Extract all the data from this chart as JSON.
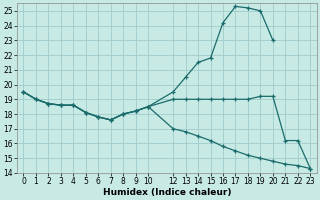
{
  "xlabel": "Humidex (Indice chaleur)",
  "xlim": [
    -0.5,
    23.5
  ],
  "ylim": [
    14,
    25.5
  ],
  "xticks": [
    0,
    1,
    2,
    3,
    4,
    5,
    6,
    7,
    8,
    9,
    10,
    12,
    13,
    14,
    15,
    16,
    17,
    18,
    19,
    20,
    21,
    22,
    23
  ],
  "yticks": [
    14,
    15,
    16,
    17,
    18,
    19,
    20,
    21,
    22,
    23,
    24,
    25
  ],
  "bg_color": "#c8eae5",
  "grid_color": "#a0cccc",
  "line_color": "#1a6b6b",
  "line1_x": [
    0,
    1,
    2,
    3,
    4,
    5,
    6,
    7,
    8,
    9,
    10,
    12,
    13,
    14,
    15,
    16,
    17,
    18,
    19,
    20,
    21,
    22,
    23
  ],
  "line1_y": [
    19.5,
    19.0,
    18.7,
    18.6,
    18.6,
    18.1,
    17.8,
    17.6,
    18.0,
    18.2,
    18.5,
    19.0,
    19.0,
    19.0,
    19.0,
    19.0,
    19.0,
    19.0,
    19.2,
    19.2,
    16.2,
    16.2,
    14.3
  ],
  "line2_x": [
    0,
    1,
    2,
    3,
    4,
    5,
    6,
    7,
    8,
    9,
    10,
    12,
    13,
    14,
    15,
    16,
    17,
    18,
    19,
    20
  ],
  "line2_y": [
    19.5,
    19.0,
    18.7,
    18.6,
    18.6,
    18.1,
    17.8,
    17.6,
    18.0,
    18.2,
    18.5,
    19.5,
    20.5,
    21.5,
    21.8,
    24.2,
    25.3,
    25.2,
    25.0,
    23.0
  ],
  "line3_x": [
    0,
    1,
    2,
    3,
    4,
    5,
    6,
    7,
    8,
    9,
    10,
    12,
    13,
    14,
    15,
    16,
    17,
    18,
    19,
    20,
    21,
    22,
    23
  ],
  "line3_y": [
    19.5,
    19.0,
    18.7,
    18.6,
    18.6,
    18.1,
    17.8,
    17.6,
    18.0,
    18.2,
    18.5,
    17.0,
    16.8,
    16.5,
    16.2,
    15.8,
    15.5,
    15.2,
    15.0,
    14.8,
    14.6,
    14.5,
    14.3
  ]
}
